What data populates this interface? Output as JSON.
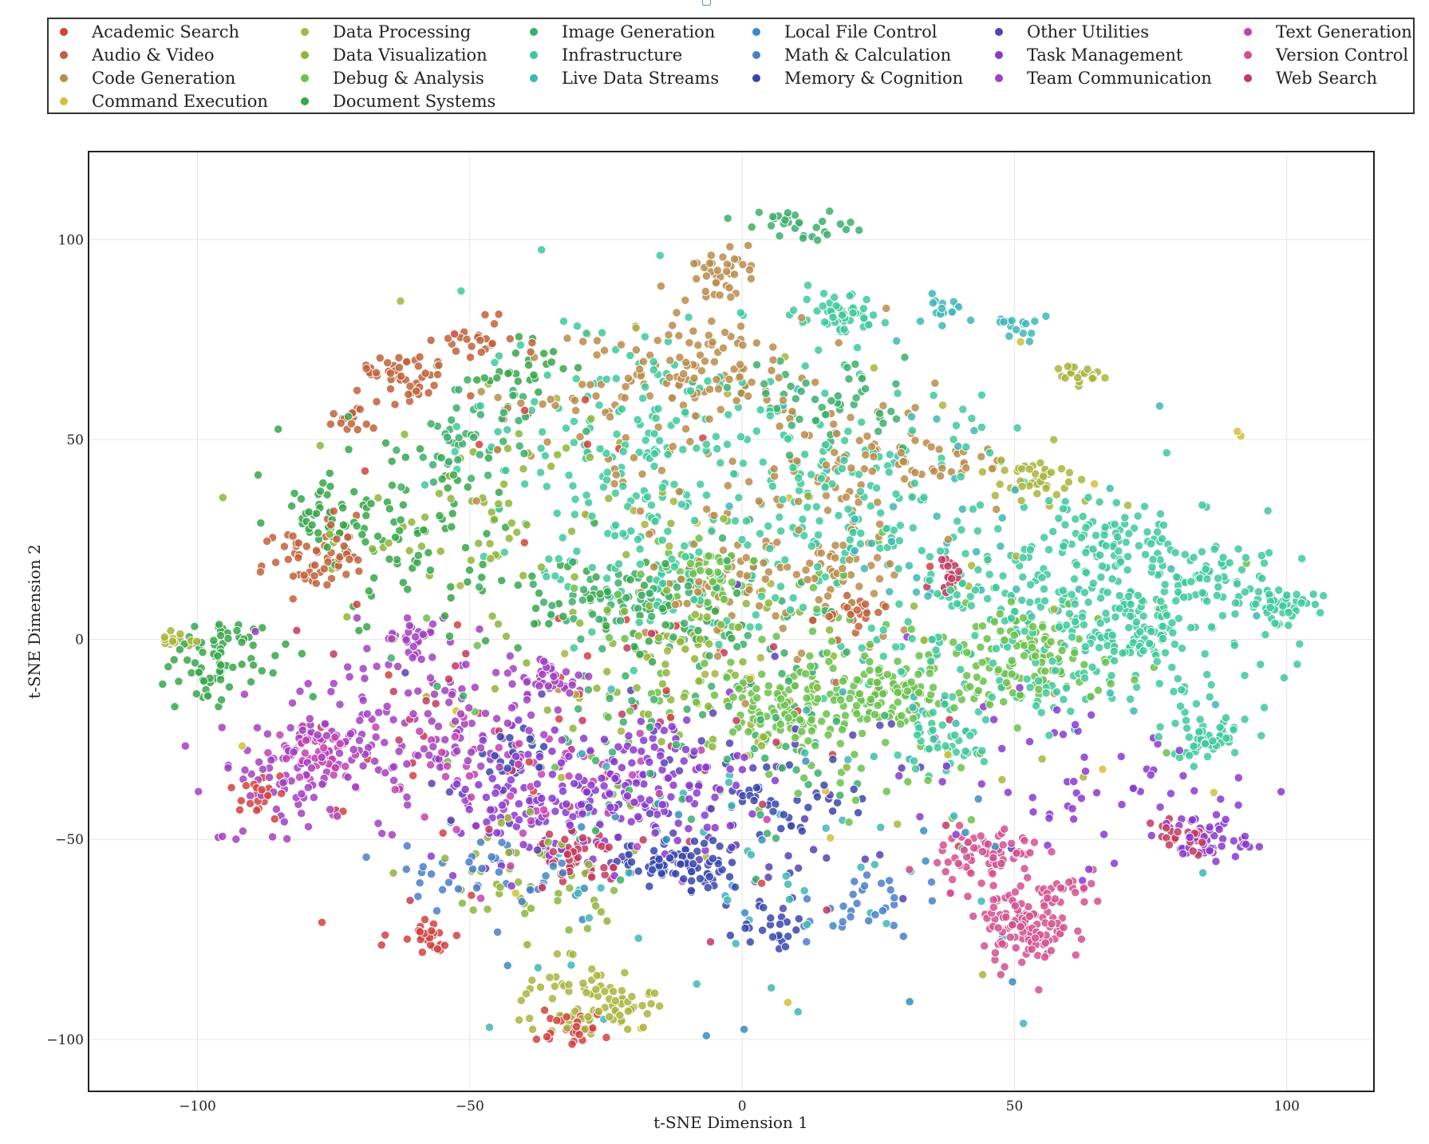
{
  "chart_data": {
    "type": "scatter",
    "title": "",
    "xlabel": "t-SNE Dimension 1",
    "ylabel": "t-SNE Dimension 2",
    "xlim": [
      -120,
      116
    ],
    "ylim": [
      -113,
      122
    ],
    "xticks": [
      -100,
      -50,
      0,
      50,
      100
    ],
    "yticks": [
      -100,
      -50,
      0,
      50,
      100
    ],
    "grid": true,
    "legend_position": "top",
    "categories": [
      {
        "name": "Academic Search",
        "color": "#d2413e"
      },
      {
        "name": "Audio & Video",
        "color": "#c0613a"
      },
      {
        "name": "Code Generation",
        "color": "#b98c4a"
      },
      {
        "name": "Command Execution",
        "color": "#d3c03a"
      },
      {
        "name": "Data Processing",
        "color": "#a9b43c"
      },
      {
        "name": "Data Visualization",
        "color": "#8eb53a"
      },
      {
        "name": "Debug & Analysis",
        "color": "#6ac14b"
      },
      {
        "name": "Document Systems",
        "color": "#36a64a"
      },
      {
        "name": "Image Generation",
        "color": "#3cae6c"
      },
      {
        "name": "Infrastructure",
        "color": "#3ec99a"
      },
      {
        "name": "Live Data Streams",
        "color": "#3fb6b6"
      },
      {
        "name": "Local File Control",
        "color": "#3a8cc0"
      },
      {
        "name": "Math & Calculation",
        "color": "#4a7ec9"
      },
      {
        "name": "Memory & Cognition",
        "color": "#3847ad"
      },
      {
        "name": "Other Utilities",
        "color": "#5b3fb4"
      },
      {
        "name": "Task Management",
        "color": "#8a38cf"
      },
      {
        "name": "Team Communication",
        "color": "#a23fbf"
      },
      {
        "name": "Text Generation",
        "color": "#c63fb0"
      },
      {
        "name": "Version Control",
        "color": "#d2508e"
      },
      {
        "name": "Web Search",
        "color": "#c23a5e"
      }
    ],
    "clusters": [
      {
        "category": "Infrastructure",
        "x": 60,
        "y": 5,
        "sx": 18,
        "sy": 14,
        "n": 300
      },
      {
        "category": "Infrastructure",
        "x": 72,
        "y": 2,
        "sx": 5,
        "sy": 5,
        "n": 70
      },
      {
        "category": "Infrastructure",
        "x": 98,
        "y": 9,
        "sx": 3,
        "sy": 2,
        "n": 50
      },
      {
        "category": "Infrastructure",
        "x": 85,
        "y": -25,
        "sx": 4,
        "sy": 3,
        "n": 60
      },
      {
        "category": "Infrastructure",
        "x": 85,
        "y": 15,
        "sx": 4,
        "sy": 4,
        "n": 50
      },
      {
        "category": "Infrastructure",
        "x": 68,
        "y": 25,
        "sx": 6,
        "sy": 5,
        "n": 60
      },
      {
        "category": "Infrastructure",
        "x": 18,
        "y": 80,
        "sx": 4,
        "sy": 3,
        "n": 50
      },
      {
        "category": "Infrastructure",
        "x": 36,
        "y": -27,
        "sx": 4,
        "sy": 3,
        "n": 40
      },
      {
        "category": "Infrastructure",
        "x": 20,
        "y": 35,
        "sx": 15,
        "sy": 15,
        "n": 160
      },
      {
        "category": "Infrastructure",
        "x": -20,
        "y": 55,
        "sx": 15,
        "sy": 15,
        "n": 140
      },
      {
        "category": "Infrastructure",
        "x": -15,
        "y": 20,
        "sx": 12,
        "sy": 12,
        "n": 100
      },
      {
        "category": "Image Generation",
        "x": 15,
        "y": 60,
        "sx": 8,
        "sy": 5,
        "n": 50
      },
      {
        "category": "Image Generation",
        "x": -20,
        "y": 10,
        "sx": 10,
        "sy": 5,
        "n": 60
      },
      {
        "category": "Image Generation",
        "x": -50,
        "y": 50,
        "sx": 6,
        "sy": 6,
        "n": 50
      },
      {
        "category": "Image Generation",
        "x": 10,
        "y": 104,
        "sx": 5,
        "sy": 2,
        "n": 30
      },
      {
        "category": "Image Generation",
        "x": -5,
        "y": -20,
        "sx": 20,
        "sy": 20,
        "n": 100
      },
      {
        "category": "Live Data Streams",
        "x": 37,
        "y": 83,
        "sx": 2,
        "sy": 2,
        "n": 15
      },
      {
        "category": "Live Data Streams",
        "x": 50,
        "y": 78,
        "sx": 3,
        "sy": 2,
        "n": 15
      },
      {
        "category": "Live Data Streams",
        "x": -5,
        "y": -60,
        "sx": 25,
        "sy": 20,
        "n": 60
      },
      {
        "category": "Live Data Streams",
        "x": 40,
        "y": 20,
        "sx": 25,
        "sy": 25,
        "n": 60
      },
      {
        "category": "Debug & Analysis",
        "x": 10,
        "y": -17,
        "sx": 6,
        "sy": 5,
        "n": 110
      },
      {
        "category": "Debug & Analysis",
        "x": 28,
        "y": -14,
        "sx": 5,
        "sy": 4,
        "n": 80
      },
      {
        "category": "Debug & Analysis",
        "x": -6,
        "y": 15,
        "sx": 4,
        "sy": 4,
        "n": 50
      },
      {
        "category": "Debug & Analysis",
        "x": 50,
        "y": -5,
        "sx": 8,
        "sy": 6,
        "n": 110
      },
      {
        "category": "Debug & Analysis",
        "x": 10,
        "y": -5,
        "sx": 25,
        "sy": 20,
        "n": 120
      },
      {
        "category": "Data Processing",
        "x": 52,
        "y": 40,
        "sx": 4,
        "sy": 3,
        "n": 40
      },
      {
        "category": "Data Processing",
        "x": -30,
        "y": -90,
        "sx": 6,
        "sy": 5,
        "n": 60
      },
      {
        "category": "Data Processing",
        "x": -20,
        "y": -92,
        "sx": 3,
        "sy": 2,
        "n": 20
      },
      {
        "category": "Data Processing",
        "x": 65,
        "y": 66,
        "sx": 4,
        "sy": 2,
        "n": 20
      },
      {
        "category": "Data Processing",
        "x": -105,
        "y": 0,
        "sx": 3,
        "sy": 0.8,
        "n": 20
      },
      {
        "category": "Data Processing",
        "x": 0,
        "y": 0,
        "sx": 30,
        "sy": 30,
        "n": 60
      },
      {
        "category": "Data Visualization",
        "x": -10,
        "y": -5,
        "sx": 15,
        "sy": 15,
        "n": 80
      },
      {
        "category": "Data Visualization",
        "x": -40,
        "y": -60,
        "sx": 10,
        "sy": 8,
        "n": 50
      },
      {
        "category": "Data Visualization",
        "x": -50,
        "y": 30,
        "sx": 15,
        "sy": 15,
        "n": 60
      },
      {
        "category": "Document Systems",
        "x": -75,
        "y": 32,
        "sx": 5,
        "sy": 4,
        "n": 50
      },
      {
        "category": "Document Systems",
        "x": -95,
        "y": -3,
        "sx": 7,
        "sy": 5,
        "n": 50
      },
      {
        "category": "Document Systems",
        "x": -98,
        "y": -10,
        "sx": 3,
        "sy": 3,
        "n": 25
      },
      {
        "category": "Document Systems",
        "x": -60,
        "y": 25,
        "sx": 12,
        "sy": 12,
        "n": 80
      },
      {
        "category": "Document Systems",
        "x": -20,
        "y": 8,
        "sx": 10,
        "sy": 6,
        "n": 60
      },
      {
        "category": "Document Systems",
        "x": -40,
        "y": 68,
        "sx": 4,
        "sy": 3,
        "n": 25
      },
      {
        "category": "Code Generation",
        "x": -5,
        "y": 92,
        "sx": 3,
        "sy": 3,
        "n": 35
      },
      {
        "category": "Code Generation",
        "x": -5,
        "y": 68,
        "sx": 6,
        "sy": 6,
        "n": 70
      },
      {
        "category": "Code Generation",
        "x": 20,
        "y": 45,
        "sx": 8,
        "sy": 8,
        "n": 60
      },
      {
        "category": "Code Generation",
        "x": -5,
        "y": 15,
        "sx": 5,
        "sy": 5,
        "n": 40
      },
      {
        "category": "Code Generation",
        "x": 18,
        "y": 20,
        "sx": 5,
        "sy": 5,
        "n": 40
      },
      {
        "category": "Code Generation",
        "x": 10,
        "y": 30,
        "sx": 20,
        "sy": 25,
        "n": 80
      },
      {
        "category": "Code Generation",
        "x": -25,
        "y": 60,
        "sx": 12,
        "sy": 12,
        "n": 60
      },
      {
        "category": "Code Generation",
        "x": 40,
        "y": 45,
        "sx": 5,
        "sy": 3,
        "n": 20
      },
      {
        "category": "Audio & Video",
        "x": -62,
        "y": 65,
        "sx": 4,
        "sy": 3,
        "n": 45
      },
      {
        "category": "Audio & Video",
        "x": -78,
        "y": 20,
        "sx": 5,
        "sy": 5,
        "n": 60
      },
      {
        "category": "Audio & Video",
        "x": -72,
        "y": 55,
        "sx": 2,
        "sy": 2,
        "n": 15
      },
      {
        "category": "Audio & Video",
        "x": 20,
        "y": 5,
        "sx": 3,
        "sy": 3,
        "n": 25
      },
      {
        "category": "Audio & Video",
        "x": -50,
        "y": 75,
        "sx": 4,
        "sy": 3,
        "n": 25
      },
      {
        "category": "Team Communication",
        "x": -80,
        "y": -30,
        "sx": 6,
        "sy": 5,
        "n": 70
      },
      {
        "category": "Team Communication",
        "x": -60,
        "y": -20,
        "sx": 12,
        "sy": 12,
        "n": 130
      },
      {
        "category": "Team Communication",
        "x": -35,
        "y": -10,
        "sx": 4,
        "sy": 3,
        "n": 45
      },
      {
        "category": "Team Communication",
        "x": -60,
        "y": 0,
        "sx": 3,
        "sy": 3,
        "n": 25
      },
      {
        "category": "Team Communication",
        "x": -85,
        "y": -40,
        "sx": 6,
        "sy": 6,
        "n": 30
      },
      {
        "category": "Task Management",
        "x": -35,
        "y": -40,
        "sx": 12,
        "sy": 8,
        "n": 130
      },
      {
        "category": "Task Management",
        "x": -15,
        "y": -35,
        "sx": 8,
        "sy": 8,
        "n": 90
      },
      {
        "category": "Task Management",
        "x": 85,
        "y": -50,
        "sx": 4,
        "sy": 3,
        "n": 50
      },
      {
        "category": "Task Management",
        "x": 60,
        "y": -35,
        "sx": 15,
        "sy": 10,
        "n": 60
      },
      {
        "category": "Text Generation",
        "x": -45,
        "y": -35,
        "sx": 15,
        "sy": 10,
        "n": 70
      },
      {
        "category": "Text Generation",
        "x": -78,
        "y": -28,
        "sx": 4,
        "sy": 3,
        "n": 40
      },
      {
        "category": "Other Utilities",
        "x": -10,
        "y": -40,
        "sx": 25,
        "sy": 15,
        "n": 70
      },
      {
        "category": "Memory & Cognition",
        "x": -15,
        "y": -55,
        "sx": 4,
        "sy": 3,
        "n": 50
      },
      {
        "category": "Memory & Cognition",
        "x": -8,
        "y": -57,
        "sx": 4,
        "sy": 3,
        "n": 40
      },
      {
        "category": "Memory & Cognition",
        "x": 8,
        "y": -40,
        "sx": 8,
        "sy": 6,
        "n": 40
      },
      {
        "category": "Memory & Cognition",
        "x": -40,
        "y": -28,
        "sx": 4,
        "sy": 3,
        "n": 25
      },
      {
        "category": "Memory & Cognition",
        "x": 5,
        "y": -72,
        "sx": 4,
        "sy": 4,
        "n": 25
      },
      {
        "category": "Math & Calculation",
        "x": -50,
        "y": -58,
        "sx": 8,
        "sy": 5,
        "n": 40
      },
      {
        "category": "Math & Calculation",
        "x": 20,
        "y": -65,
        "sx": 6,
        "sy": 5,
        "n": 30
      },
      {
        "category": "Local File Control",
        "x": 0,
        "y": -60,
        "sx": 30,
        "sy": 20,
        "n": 25
      },
      {
        "category": "Version Control",
        "x": 52,
        "y": -72,
        "sx": 4,
        "sy": 5,
        "n": 110
      },
      {
        "category": "Version Control",
        "x": 45,
        "y": -54,
        "sx": 5,
        "sy": 4,
        "n": 70
      },
      {
        "category": "Version Control",
        "x": 62,
        "y": -63,
        "sx": 3,
        "sy": 2,
        "n": 20
      },
      {
        "category": "Web Search",
        "x": 38,
        "y": 15,
        "sx": 2,
        "sy": 2,
        "n": 20
      },
      {
        "category": "Web Search",
        "x": -30,
        "y": -55,
        "sx": 4,
        "sy": 4,
        "n": 50
      },
      {
        "category": "Web Search",
        "x": 80,
        "y": -50,
        "sx": 4,
        "sy": 2,
        "n": 25
      },
      {
        "category": "Web Search",
        "x": -30,
        "y": -30,
        "sx": 30,
        "sy": 25,
        "n": 40
      },
      {
        "category": "Academic Search",
        "x": -32,
        "y": -97,
        "sx": 4,
        "sy": 2,
        "n": 30
      },
      {
        "category": "Academic Search",
        "x": -58,
        "y": -73,
        "sx": 3,
        "sy": 3,
        "n": 25
      },
      {
        "category": "Academic Search",
        "x": -88,
        "y": -38,
        "sx": 3,
        "sy": 3,
        "n": 20
      },
      {
        "category": "Academic Search",
        "x": -40,
        "y": 0,
        "sx": 25,
        "sy": 30,
        "n": 40
      },
      {
        "category": "Command Execution",
        "x": 20,
        "y": -20,
        "sx": 40,
        "sy": 40,
        "n": 20
      }
    ]
  }
}
